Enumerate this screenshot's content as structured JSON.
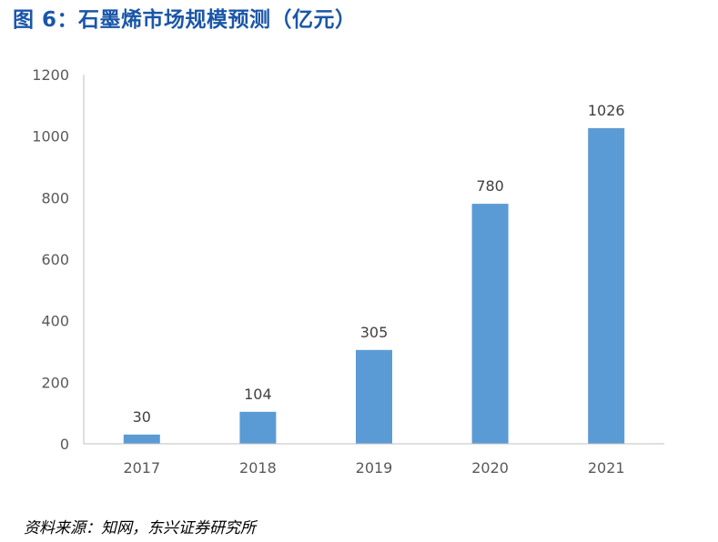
{
  "title": "图 6：石墨烯市场规模预测（亿元）",
  "source": "资料来源：知网，东兴证券研究所",
  "chart_data": {
    "type": "bar",
    "title": "图 6：石墨烯市场规模预测（亿元）",
    "categories": [
      "2017",
      "2018",
      "2019",
      "2020",
      "2021"
    ],
    "values": [
      30,
      104,
      305,
      780,
      1026
    ],
    "data_labels": [
      "30",
      "104",
      "305",
      "780",
      "1026"
    ],
    "yticks": [
      "0",
      "200",
      "400",
      "600",
      "800",
      "1000",
      "1200"
    ],
    "ylim": [
      0,
      1200
    ],
    "xlabel": "",
    "ylabel": "",
    "grid": false,
    "legend": "none",
    "bar_color": "#5b9bd5",
    "axis_color": "#bfbfbf",
    "text_color": "#595959"
  }
}
